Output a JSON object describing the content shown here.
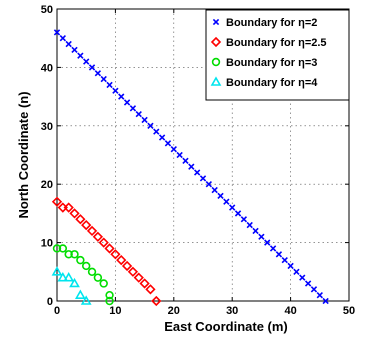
{
  "chart_data": {
    "type": "scatter",
    "xlabel": "East Coordinate (m)",
    "ylabel": "North Coordinate (n)",
    "xlim": [
      0,
      50
    ],
    "ylim": [
      0,
      50
    ],
    "xticks": [
      "0",
      "10",
      "20",
      "30",
      "40",
      "50"
    ],
    "yticks": [
      "0",
      "10",
      "20",
      "30",
      "40",
      "50"
    ],
    "grid": true,
    "legend_position": "top-right",
    "series": [
      {
        "name": "Boundary for η=2",
        "marker": "x",
        "color": "#0000ff",
        "x": [
          0,
          1,
          2,
          3,
          4,
          5,
          6,
          7,
          8,
          9,
          10,
          11,
          12,
          13,
          14,
          15,
          16,
          17,
          18,
          19,
          20,
          21,
          22,
          23,
          24,
          25,
          26,
          27,
          28,
          29,
          30,
          31,
          32,
          33,
          34,
          35,
          36,
          37,
          38,
          39,
          40,
          41,
          42,
          43,
          44,
          45,
          46
        ],
        "y": [
          46,
          45,
          44,
          43,
          42,
          41,
          40,
          39,
          38,
          37,
          36,
          35,
          34,
          33,
          32,
          31,
          30,
          29,
          28,
          27,
          26,
          25,
          24,
          23,
          22,
          21,
          20,
          19,
          18,
          17,
          16,
          15,
          14,
          13,
          12,
          11,
          10,
          9,
          8,
          7,
          6,
          5,
          4,
          3,
          2,
          1,
          0
        ]
      },
      {
        "name": "Boundary for η=2.5",
        "marker": "diamond",
        "color": "#ff0000",
        "x": [
          0,
          1,
          2,
          3,
          4,
          5,
          6,
          7,
          8,
          9,
          10,
          11,
          12,
          13,
          14,
          15,
          16,
          17
        ],
        "y": [
          17,
          16,
          16,
          15,
          14,
          13,
          12,
          11,
          10,
          9,
          8,
          7,
          6,
          5,
          4,
          3,
          2,
          0
        ]
      },
      {
        "name": "Boundary for η=3",
        "marker": "circle",
        "color": "#00dd00",
        "x": [
          0,
          1,
          2,
          3,
          4,
          5,
          6,
          7,
          8,
          9,
          9
        ],
        "y": [
          9,
          9,
          8,
          8,
          7,
          6,
          5,
          4,
          3,
          1,
          0
        ]
      },
      {
        "name": "Boundary for η=4",
        "marker": "triangle",
        "color": "#00e5ee",
        "x": [
          0,
          1,
          2,
          3,
          4,
          5
        ],
        "y": [
          5,
          4,
          4,
          3,
          1,
          0
        ]
      }
    ]
  }
}
